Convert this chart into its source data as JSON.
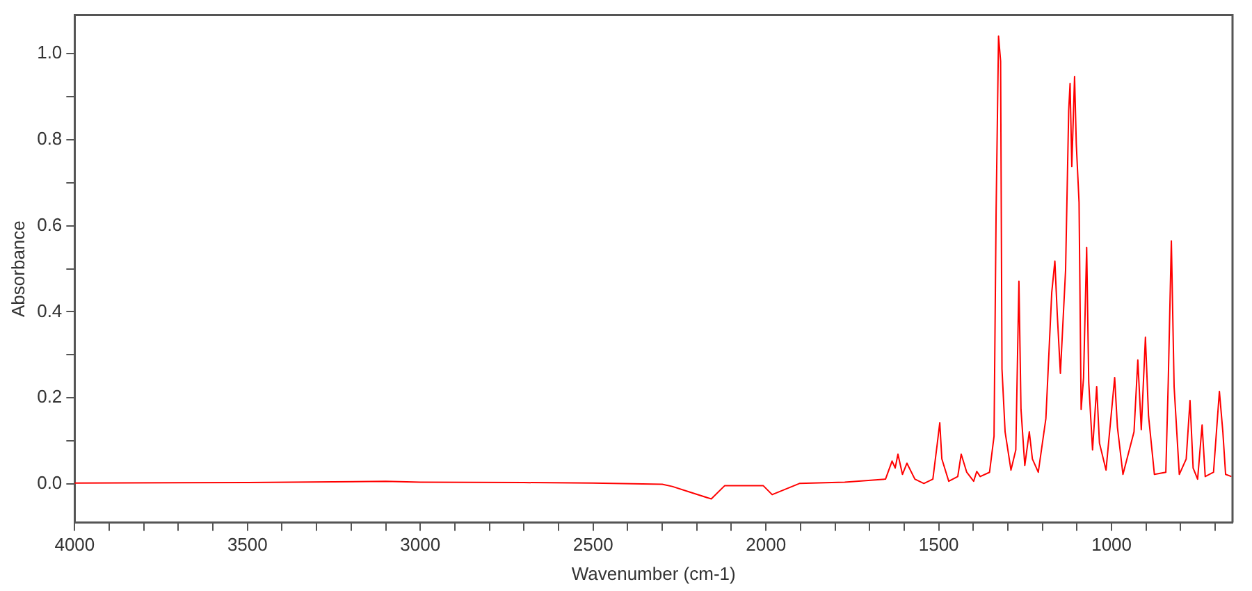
{
  "chart_data": {
    "type": "line",
    "xlabel": "Wavenumber (cm-1)",
    "ylabel": "Absorbance",
    "xlim": [
      4000,
      650
    ],
    "ylim": [
      -0.09,
      1.09
    ],
    "xticks": [
      4000,
      {
        "value": 3900,
        "label": null
      },
      {
        "value": 3800,
        "label": null
      },
      {
        "value": 3700,
        "label": null
      },
      {
        "value": 3600,
        "label": null
      },
      3500,
      {
        "value": 3400,
        "label": null
      },
      {
        "value": 3300,
        "label": null
      },
      {
        "value": 3200,
        "label": null
      },
      {
        "value": 3100,
        "label": null
      },
      3000,
      {
        "value": 2900,
        "label": null
      },
      {
        "value": 2800,
        "label": null
      },
      {
        "value": 2700,
        "label": null
      },
      {
        "value": 2600,
        "label": null
      },
      2500,
      {
        "value": 2400,
        "label": null
      },
      {
        "value": 2300,
        "label": null
      },
      {
        "value": 2200,
        "label": null
      },
      {
        "value": 2100,
        "label": null
      },
      2000,
      {
        "value": 1900,
        "label": null
      },
      {
        "value": 1800,
        "label": null
      },
      {
        "value": 1700,
        "label": null
      },
      {
        "value": 1600,
        "label": null
      },
      1500,
      {
        "value": 1400,
        "label": null
      },
      {
        "value": 1300,
        "label": null
      },
      {
        "value": 1200,
        "label": null
      },
      {
        "value": 1100,
        "label": null
      },
      1000,
      {
        "value": 900,
        "label": null
      },
      {
        "value": 800,
        "label": null
      },
      {
        "value": 700,
        "label": null
      }
    ],
    "yticks": [
      {
        "value": 0,
        "label": "0.0"
      },
      {
        "value": 0.1,
        "label": null
      },
      {
        "value": 0.2,
        "label": "0.2"
      },
      {
        "value": 0.3,
        "label": null
      },
      {
        "value": 0.4,
        "label": "0.4"
      },
      {
        "value": 0.5,
        "label": null
      },
      {
        "value": 0.6,
        "label": "0.6"
      },
      {
        "value": 0.7,
        "label": null
      },
      {
        "value": 0.8,
        "label": "0.8"
      },
      {
        "value": 0.9,
        "label": null
      },
      {
        "value": 1,
        "label": "1.0"
      }
    ],
    "grid": false,
    "marker": "none",
    "line_style": "solid",
    "series": [
      {
        "color": "#ff0000",
        "x": [
          4000,
          3500,
          3100,
          3000,
          2700,
          2500,
          2300,
          2271,
          2217,
          2158,
          2119,
          2008,
          1982,
          1903,
          1772,
          1654,
          1635,
          1626,
          1618,
          1605,
          1592,
          1569,
          1543,
          1517,
          1504,
          1497,
          1491,
          1471,
          1445,
          1435,
          1419,
          1399,
          1390,
          1380,
          1353,
          1340,
          1334,
          1327,
          1321,
          1317,
          1308,
          1291,
          1277,
          1268,
          1262,
          1251,
          1238,
          1229,
          1212,
          1190,
          1173,
          1164,
          1157,
          1148,
          1133,
          1124,
          1120,
          1115,
          1107,
          1102,
          1094,
          1088,
          1081,
          1072,
          1066,
          1055,
          1043,
          1035,
          1016,
          991,
          983,
          967,
          935,
          924,
          914,
          902,
          893,
          876,
          843,
          836,
          827,
          819,
          804,
          784,
          773,
          764,
          751,
          738,
          729,
          705,
          688,
          678,
          670,
          653
        ],
        "values": [
          0.002,
          0.003,
          0.006,
          0.004,
          0.003,
          0.002,
          -0.001,
          -0.006,
          -0.02,
          -0.035,
          -0.004,
          -0.004,
          -0.025,
          0.001,
          0.004,
          0.011,
          0.053,
          0.037,
          0.069,
          0.022,
          0.048,
          0.011,
          0.001,
          0.011,
          0.095,
          0.142,
          0.058,
          0.006,
          0.017,
          0.069,
          0.027,
          0.006,
          0.029,
          0.017,
          0.027,
          0.111,
          0.633,
          1.041,
          0.983,
          0.267,
          0.121,
          0.032,
          0.079,
          0.471,
          0.173,
          0.043,
          0.121,
          0.058,
          0.027,
          0.152,
          0.445,
          0.518,
          0.393,
          0.257,
          0.497,
          0.868,
          0.931,
          0.738,
          0.947,
          0.79,
          0.654,
          0.173,
          0.247,
          0.55,
          0.236,
          0.079,
          0.226,
          0.095,
          0.032,
          0.247,
          0.132,
          0.022,
          0.121,
          0.288,
          0.126,
          0.341,
          0.158,
          0.022,
          0.027,
          0.236,
          0.565,
          0.226,
          0.022,
          0.058,
          0.194,
          0.037,
          0.011,
          0.137,
          0.017,
          0.027,
          0.215,
          0.121,
          0.022,
          0.017
        ]
      }
    ]
  }
}
